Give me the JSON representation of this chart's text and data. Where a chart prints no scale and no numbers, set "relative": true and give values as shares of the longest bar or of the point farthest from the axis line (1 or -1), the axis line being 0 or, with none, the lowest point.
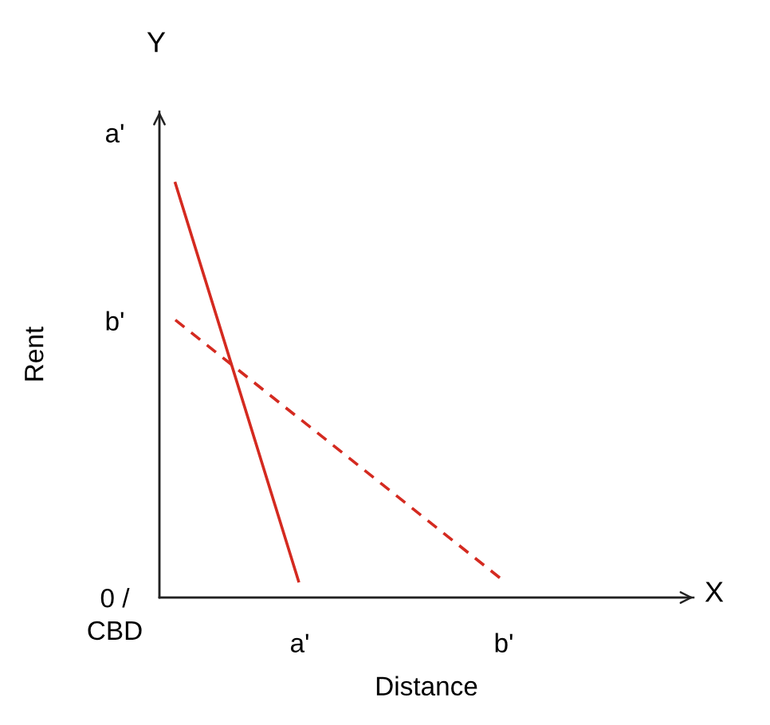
{
  "chart_data": {
    "type": "line",
    "relative": true,
    "xlabel": "Distance",
    "ylabel": "Rent",
    "categories": [
      null,
      null,
      null,
      null,
      null,
      null,
      null,
      null,
      null
    ],
    "series": [
      {
        "color": "#d42a20",
        "line_style": "solid",
        "values": [
          1,
          null,
          null,
          0.04,
          null,
          null,
          null,
          null,
          null
        ]
      },
      {
        "color": "#d42a20",
        "line_style": "dashed",
        "values": [
          0.67,
          null,
          null,
          null,
          null,
          null,
          null,
          null,
          0.04
        ]
      }
    ],
    "legend": false,
    "marker": "none",
    "annotations": [
      "a'",
      "b'",
      "0 /\nCBD",
      "a'",
      "b'",
      "Y",
      "X"
    ]
  }
}
